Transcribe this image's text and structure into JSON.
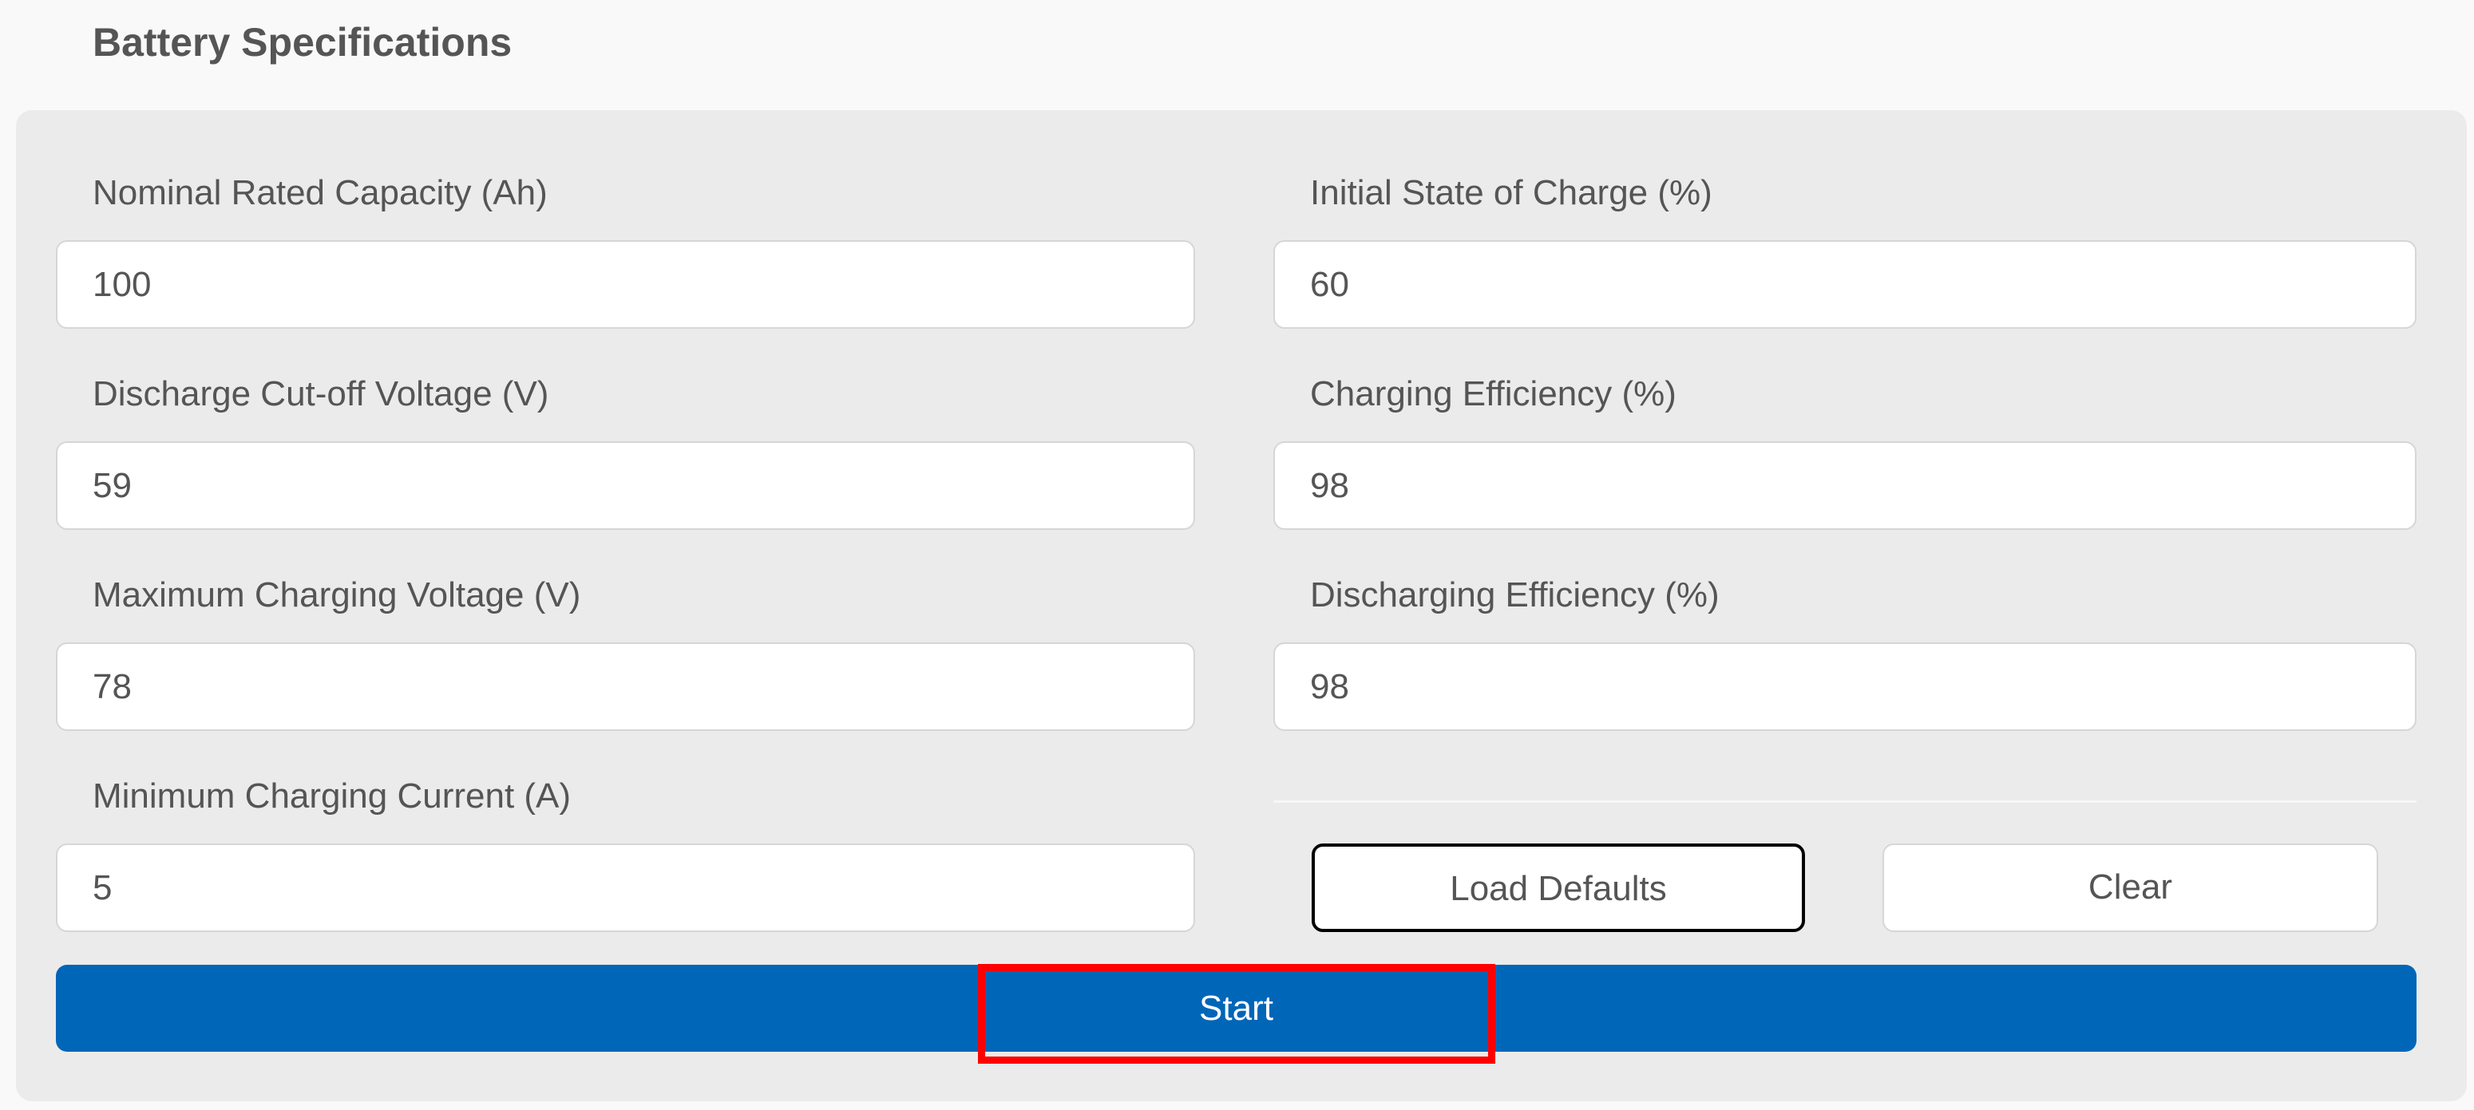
{
  "section_title": "Battery Specifications",
  "fields": [
    {
      "label": "Nominal Rated Capacity (Ah)",
      "value": "100"
    },
    {
      "label": "Initial State of Charge (%)",
      "value": "60"
    },
    {
      "label": "Discharge Cut-off Voltage (V)",
      "value": "59"
    },
    {
      "label": "Charging Efficiency (%)",
      "value": "98"
    },
    {
      "label": "Maximum Charging Voltage (V)",
      "value": "78"
    },
    {
      "label": "Discharging Efficiency (%)",
      "value": "98"
    },
    {
      "label": "Minimum Charging Current (A)",
      "value": "5"
    }
  ],
  "buttons": {
    "load_defaults": "Load Defaults",
    "clear": "Clear",
    "start": "Start"
  },
  "colors": {
    "primary": "#0066b8",
    "highlight": "#ff0000",
    "panel": "#ebebeb"
  }
}
